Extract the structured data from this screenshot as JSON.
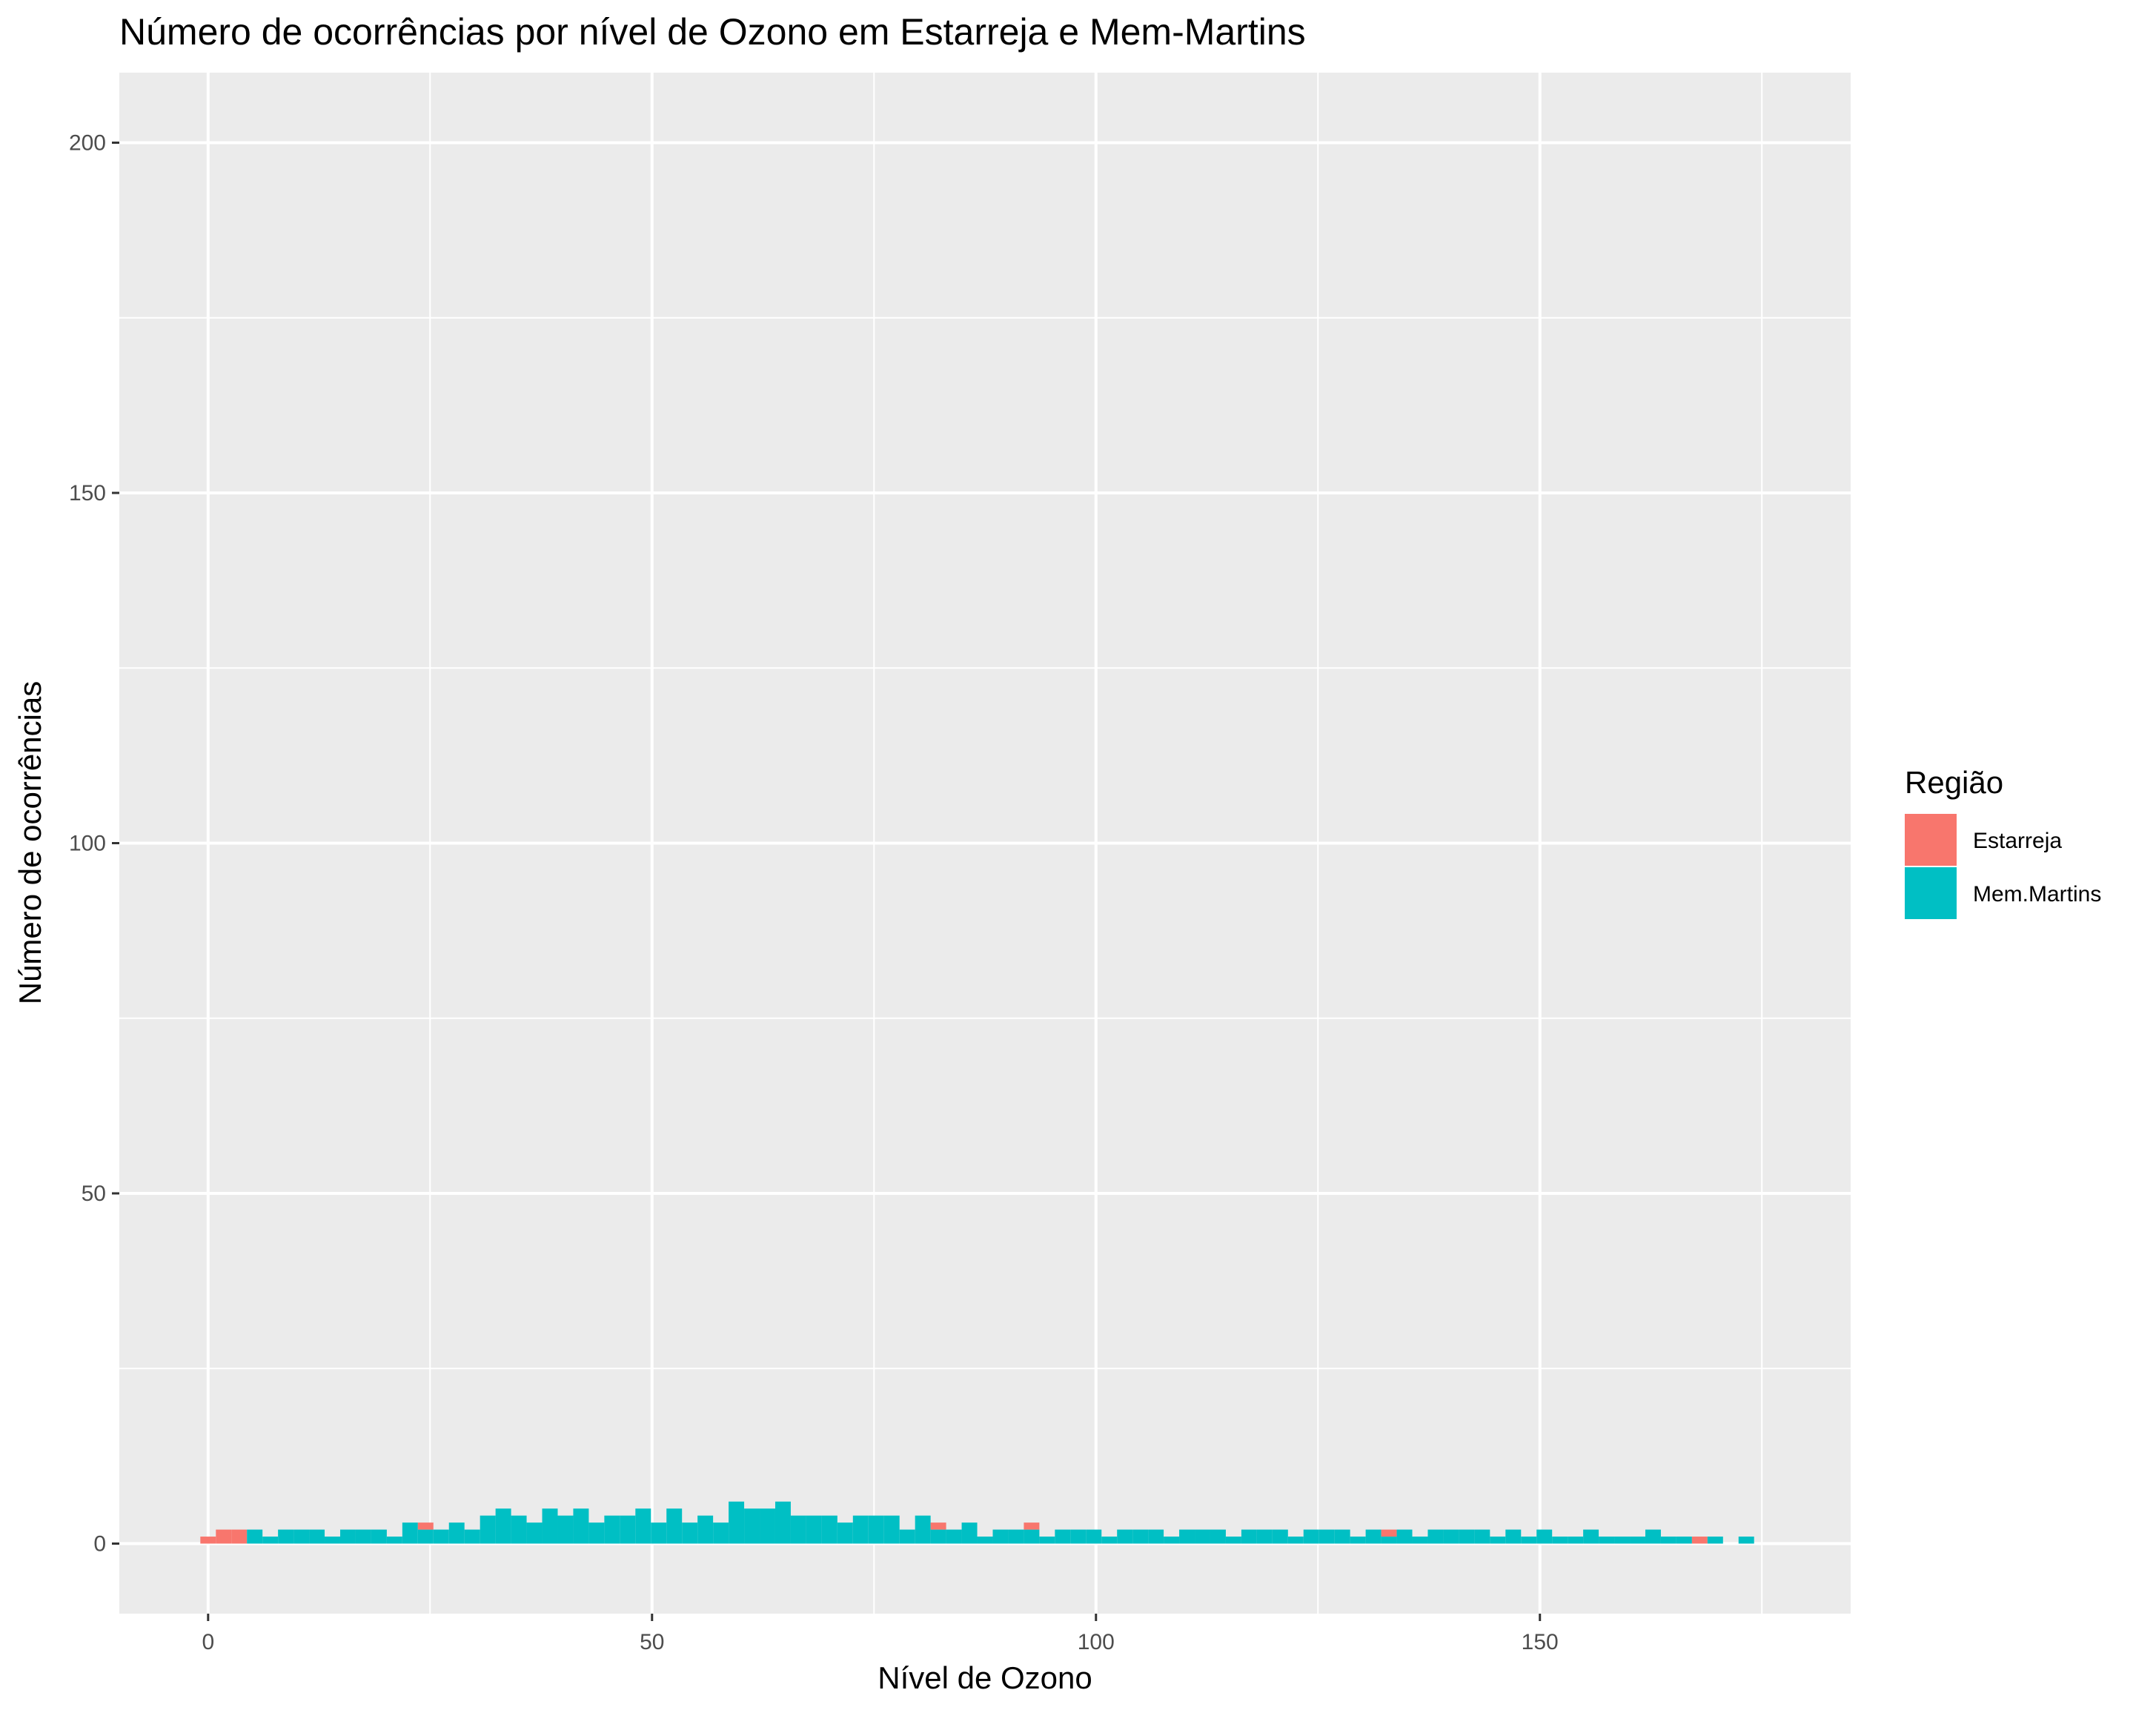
{
  "chart_data": {
    "type": "bar",
    "subtype": "stacked-histogram",
    "title": "Número de ocorrências por nível de Ozono em Estarreja e Mem-Martins",
    "xlabel": "Nível de Ozono",
    "ylabel": "Número de ocorrências",
    "xlim": [
      -10,
      185
    ],
    "ylim": [
      -10,
      210
    ],
    "x_ticks": [
      0,
      50,
      100,
      150
    ],
    "x_tick_labels": [
      "0",
      "50",
      "100",
      "150"
    ],
    "y_ticks": [
      0,
      50,
      100,
      150,
      200
    ],
    "y_tick_labels": [
      "0",
      "50",
      "100",
      "150",
      "200"
    ],
    "grid": true,
    "legend": {
      "title": "Região",
      "placement": "right"
    },
    "bin_width": 1.75,
    "x": [
      0.0,
      1.75,
      3.5,
      5.25,
      7.0,
      8.75,
      10.5,
      12.25,
      14.0,
      15.75,
      17.5,
      19.25,
      21.0,
      22.75,
      24.5,
      26.25,
      28.0,
      29.75,
      31.5,
      33.25,
      35.0,
      36.75,
      38.5,
      40.25,
      42.0,
      43.75,
      45.5,
      47.25,
      49.0,
      50.75,
      52.5,
      54.25,
      56.0,
      57.75,
      59.5,
      61.25,
      63.0,
      64.75,
      66.5,
      68.25,
      70.0,
      71.75,
      73.5,
      75.25,
      77.0,
      78.75,
      80.5,
      82.25,
      84.0,
      85.75,
      87.5,
      89.25,
      91.0,
      92.75,
      94.5,
      96.25,
      98.0,
      99.75,
      101.5,
      103.25,
      105.0,
      106.75,
      108.5,
      110.25,
      112.0,
      113.75,
      115.5,
      117.25,
      119.0,
      120.75,
      122.5,
      124.25,
      126.0,
      127.75,
      129.5,
      131.25,
      133.0,
      134.75,
      136.5,
      138.25,
      140.0,
      141.75,
      143.5,
      145.25,
      147.0,
      148.75,
      150.5,
      152.25,
      154.0,
      155.75,
      157.5,
      159.25,
      161.0,
      162.75,
      164.5,
      166.25,
      168.0,
      169.75,
      171.5,
      173.25,
      175.0
    ],
    "series": [
      {
        "name": "Estarreja",
        "color": "#F8766D",
        "values": [
          1,
          2,
          2,
          0,
          0,
          0,
          0,
          0,
          0,
          0,
          0,
          0,
          0,
          0,
          1,
          0,
          0,
          0,
          0,
          0,
          0,
          0,
          0,
          0,
          0,
          0,
          0,
          0,
          0,
          0,
          0,
          0,
          0,
          0,
          0,
          0,
          0,
          0,
          0,
          0,
          0,
          0,
          0,
          0,
          0,
          0,
          0,
          1,
          0,
          0,
          0,
          0,
          0,
          1,
          0,
          0,
          0,
          0,
          0,
          0,
          0,
          0,
          0,
          0,
          0,
          0,
          0,
          0,
          0,
          0,
          0,
          0,
          0,
          0,
          0,
          0,
          1,
          0,
          0,
          0,
          0,
          0,
          0,
          0,
          0,
          0,
          0,
          0,
          0,
          0,
          0,
          0,
          0,
          0,
          0,
          0,
          1,
          0,
          0,
          0,
          0
        ]
      },
      {
        "name": "Mem.Martins",
        "color": "#00BFC4",
        "values": [
          0,
          0,
          0,
          2,
          1,
          2,
          2,
          2,
          1,
          2,
          2,
          2,
          1,
          3,
          2,
          2,
          3,
          2,
          4,
          5,
          4,
          3,
          5,
          4,
          5,
          3,
          4,
          4,
          5,
          3,
          5,
          3,
          4,
          3,
          6,
          5,
          5,
          6,
          4,
          4,
          4,
          3,
          4,
          4,
          4,
          2,
          4,
          2,
          2,
          3,
          1,
          2,
          2,
          2,
          1,
          2,
          2,
          2,
          1,
          2,
          2,
          2,
          1,
          2,
          2,
          2,
          1,
          2,
          2,
          2,
          1,
          2,
          2,
          2,
          1,
          2,
          1,
          2,
          1,
          2,
          2,
          2,
          2,
          1,
          2,
          1,
          2,
          1,
          1,
          2,
          1,
          1,
          1,
          2,
          1,
          1,
          0,
          1,
          0,
          1,
          0
        ]
      }
    ]
  }
}
